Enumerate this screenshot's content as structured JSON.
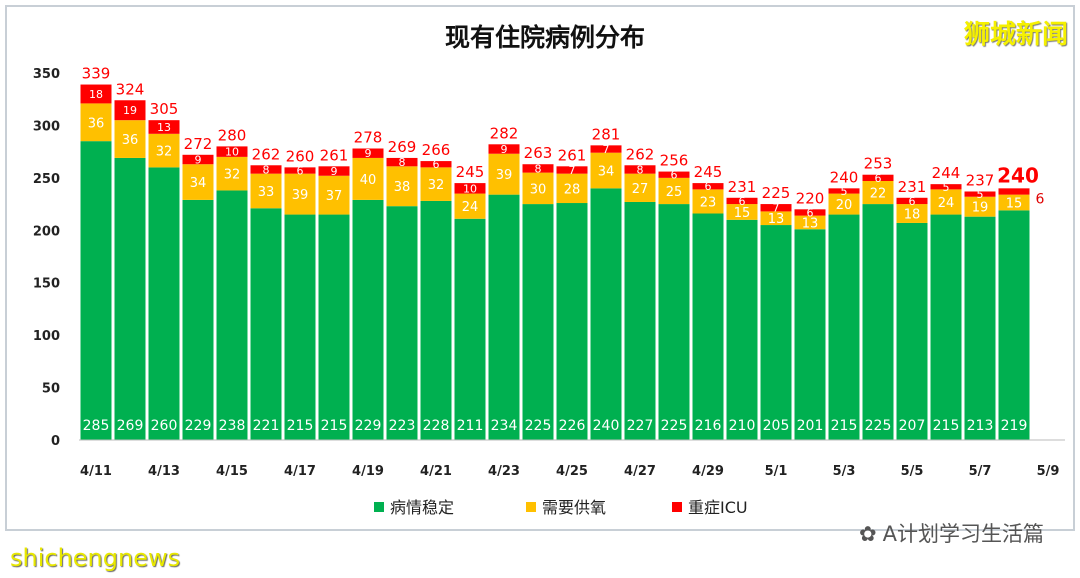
{
  "chart_data": {
    "type": "bar",
    "stacked": true,
    "title": "现有住院病例分布",
    "categories": [
      "4/11",
      "4/12",
      "4/13",
      "4/14",
      "4/15",
      "4/16",
      "4/17",
      "4/18",
      "4/19",
      "4/20",
      "4/21",
      "4/22",
      "4/23",
      "4/24",
      "4/25",
      "4/26",
      "4/27",
      "4/28",
      "4/29",
      "4/30",
      "5/1",
      "5/2",
      "5/3",
      "5/4",
      "5/5",
      "5/6",
      "5/7",
      "5/8"
    ],
    "x_tick_labels": [
      "4/11",
      "4/13",
      "4/15",
      "4/17",
      "4/19",
      "4/21",
      "4/23",
      "4/25",
      "4/27",
      "4/29",
      "5/1",
      "5/3",
      "5/5",
      "5/7",
      "5/9"
    ],
    "series": [
      {
        "name": "病情稳定",
        "color": "#00B050",
        "values": [
          285,
          269,
          260,
          229,
          238,
          221,
          215,
          215,
          229,
          223,
          228,
          211,
          234,
          225,
          226,
          240,
          227,
          225,
          216,
          210,
          205,
          201,
          215,
          225,
          207,
          215,
          213,
          219
        ]
      },
      {
        "name": "需要供氧",
        "color": "#FFC000",
        "values": [
          36,
          36,
          32,
          34,
          32,
          33,
          39,
          37,
          40,
          38,
          32,
          24,
          39,
          30,
          28,
          34,
          27,
          25,
          23,
          15,
          13,
          13,
          20,
          22,
          18,
          24,
          19,
          15
        ]
      },
      {
        "name": "重症ICU",
        "color": "#FF0000",
        "values": [
          18,
          19,
          13,
          9,
          10,
          8,
          6,
          9,
          9,
          8,
          6,
          10,
          9,
          8,
          7,
          7,
          8,
          6,
          6,
          6,
          7,
          6,
          5,
          6,
          6,
          5,
          5,
          6
        ]
      }
    ],
    "totals": [
      339,
      324,
      305,
      272,
      280,
      262,
      260,
      261,
      278,
      269,
      266,
      245,
      282,
      263,
      261,
      281,
      262,
      256,
      245,
      231,
      225,
      220,
      240,
      253,
      231,
      244,
      237,
      240
    ],
    "ylim": [
      0,
      350
    ],
    "y_ticks": [
      0,
      50,
      100,
      150,
      200,
      250,
      300,
      350
    ],
    "grid": false,
    "legend": "bottom",
    "total_label_color": "#FF0000"
  },
  "watermarks": {
    "brand_top": "狮城新闻",
    "brand_bottom": "shichengnews",
    "wechat": "A计划学习生活篇"
  }
}
